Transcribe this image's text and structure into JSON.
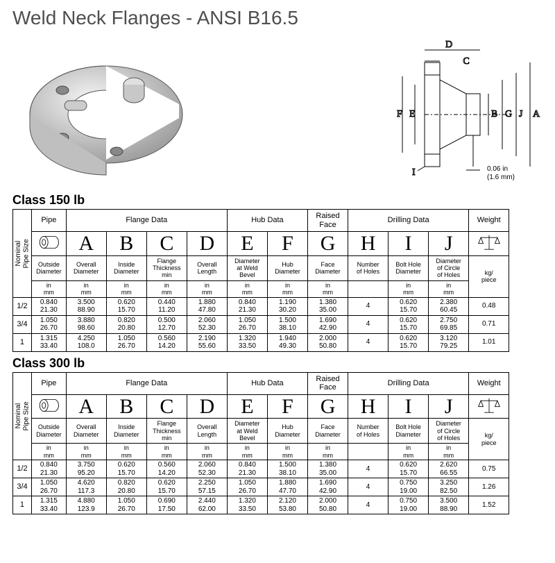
{
  "title": "Weld Neck Flanges - ANSI B16.5",
  "dim_note": "0.06 in\n(1.6 mm)",
  "labels": {
    "nominal": "Nominal\nPipe Size",
    "pipe": "Pipe",
    "flange": "Flange Data",
    "hub": "Hub Data",
    "raised": "Raised\nFace",
    "drill": "Drilling Data",
    "weight": "Weight",
    "outside": "Outside\nDiameter",
    "overall_d": "Overall\nDiameter",
    "inside_d": "Inside\nDiameter",
    "flange_t": "Flange\nThickness\nmin",
    "overall_l": "Overall\nLength",
    "dia_weld": "Diameter\nat Weld\nBevel",
    "hub_d": "Hub\nDiameter",
    "face_d": "Face\nDiameter",
    "num_holes": "Number\nof Holes",
    "bolt_d": "Bolt Hole\nDiameter",
    "circle_d": "Diameter\nof Circle\nof Holes",
    "kg": "kg/\npiece",
    "in_mm": "in\nmm"
  },
  "letters": [
    "A",
    "B",
    "C",
    "D",
    "E",
    "F",
    "G",
    "H",
    "I",
    "J"
  ],
  "classes": [
    {
      "heading": "Class 150 lb",
      "rows": [
        {
          "size": "1/2",
          "pipe": [
            "0.840",
            "21.30"
          ],
          "A": [
            "3.500",
            "88.90"
          ],
          "B": [
            "0.620",
            "15.70"
          ],
          "C": [
            "0.440",
            "11.20"
          ],
          "D": [
            "1.880",
            "47.80"
          ],
          "E": [
            "0.840",
            "21.30"
          ],
          "F": [
            "1.190",
            "30.20"
          ],
          "G": [
            "1.380",
            "35.00"
          ],
          "H": "4",
          "I": [
            "0.620",
            "15.70"
          ],
          "J": [
            "2.380",
            "60.45"
          ],
          "W": "0.48"
        },
        {
          "size": "3/4",
          "pipe": [
            "1.050",
            "26.70"
          ],
          "A": [
            "3.880",
            "98.60"
          ],
          "B": [
            "0.820",
            "20.80"
          ],
          "C": [
            "0.500",
            "12.70"
          ],
          "D": [
            "2.060",
            "52.30"
          ],
          "E": [
            "1.050",
            "26.70"
          ],
          "F": [
            "1.500",
            "38.10"
          ],
          "G": [
            "1.690",
            "42.90"
          ],
          "H": "4",
          "I": [
            "0.620",
            "15.70"
          ],
          "J": [
            "2.750",
            "69.85"
          ],
          "W": "0.71"
        },
        {
          "size": "1",
          "pipe": [
            "1.315",
            "33.40"
          ],
          "A": [
            "4.250",
            "108.0"
          ],
          "B": [
            "1.050",
            "26.70"
          ],
          "C": [
            "0.560",
            "14.20"
          ],
          "D": [
            "2.190",
            "55.60"
          ],
          "E": [
            "1.320",
            "33.50"
          ],
          "F": [
            "1.940",
            "49.30"
          ],
          "G": [
            "2.000",
            "50.80"
          ],
          "H": "4",
          "I": [
            "0.620",
            "15.70"
          ],
          "J": [
            "3.120",
            "79.25"
          ],
          "W": "1.01"
        }
      ]
    },
    {
      "heading": "Class 300 lb",
      "rows": [
        {
          "size": "1/2",
          "pipe": [
            "0.840",
            "21.30"
          ],
          "A": [
            "3.750",
            "95.20"
          ],
          "B": [
            "0.620",
            "15.70"
          ],
          "C": [
            "0.560",
            "14.20"
          ],
          "D": [
            "2.060",
            "52.30"
          ],
          "E": [
            "0.840",
            "21.30"
          ],
          "F": [
            "1.500",
            "38.10"
          ],
          "G": [
            "1.380",
            "35.00"
          ],
          "H": "4",
          "I": [
            "0.620",
            "15.70"
          ],
          "J": [
            "2.620",
            "66.55"
          ],
          "W": "0.75"
        },
        {
          "size": "3/4",
          "pipe": [
            "1.050",
            "26.70"
          ],
          "A": [
            "4.620",
            "117.3"
          ],
          "B": [
            "0.820",
            "20.80"
          ],
          "C": [
            "0.620",
            "15.70"
          ],
          "D": [
            "2.250",
            "57.15"
          ],
          "E": [
            "1.050",
            "26.70"
          ],
          "F": [
            "1.880",
            "47.70"
          ],
          "G": [
            "1.690",
            "42.90"
          ],
          "H": "4",
          "I": [
            "0.750",
            "19.00"
          ],
          "J": [
            "3.250",
            "82.50"
          ],
          "W": "1.26"
        },
        {
          "size": "1",
          "pipe": [
            "1.315",
            "33.40"
          ],
          "A": [
            "4.880",
            "123.9"
          ],
          "B": [
            "1.050",
            "26.70"
          ],
          "C": [
            "0.690",
            "17.50"
          ],
          "D": [
            "2.440",
            "62.00"
          ],
          "E": [
            "1.320",
            "33.50"
          ],
          "F": [
            "2.120",
            "53.80"
          ],
          "G": [
            "2.000",
            "50.80"
          ],
          "H": "4",
          "I": [
            "0.750",
            "19.00"
          ],
          "J": [
            "3.500",
            "88.90"
          ],
          "W": "1.52"
        }
      ]
    }
  ]
}
